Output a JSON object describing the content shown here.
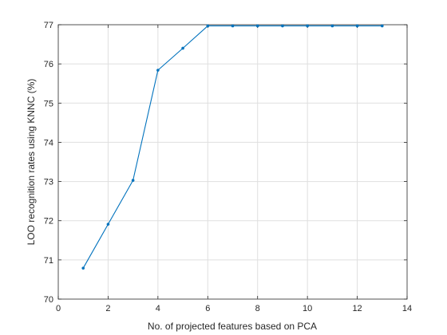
{
  "chart_data": {
    "type": "line",
    "title": "",
    "xlabel": "No. of projected features based on PCA",
    "ylabel": "LOO recognition rates using KNNC (%)",
    "xlim": [
      0,
      14
    ],
    "ylim": [
      70,
      77
    ],
    "xticks": [
      0,
      2,
      4,
      6,
      8,
      10,
      12,
      14
    ],
    "yticks": [
      70,
      71,
      72,
      73,
      74,
      75,
      76,
      77
    ],
    "grid": true,
    "series": [
      {
        "color": "#0072bd",
        "marker": "dot",
        "x": [
          1,
          2,
          3,
          4,
          5,
          6,
          7,
          8,
          9,
          10,
          11,
          12,
          13
        ],
        "y": [
          70.79,
          71.91,
          73.03,
          75.84,
          76.4,
          76.97,
          76.97,
          76.97,
          76.97,
          76.97,
          76.97,
          76.97,
          76.97
        ]
      }
    ]
  }
}
